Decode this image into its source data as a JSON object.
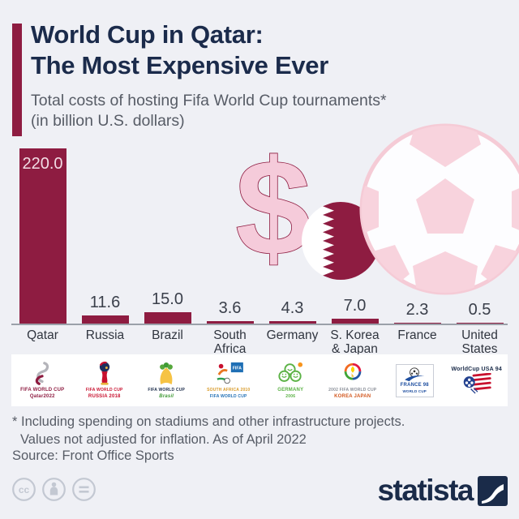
{
  "header": {
    "title_line1": "World Cup in Qatar:",
    "title_line2": "The Most Expensive Ever",
    "subtitle_line1": "Total costs of hosting Fifa World Cup tournaments*",
    "subtitle_line2": "(in billion U.S. dollars)"
  },
  "chart_data": {
    "type": "bar",
    "title": "Total costs of hosting Fifa World Cup tournaments (in billion U.S. dollars)",
    "categories": [
      "Qatar",
      "Russia",
      "Brazil",
      "South Africa",
      "Germany",
      "S. Korea & Japan",
      "France",
      "United States"
    ],
    "category_labels": [
      "Qatar",
      "Russia",
      "Brazil",
      "South\nAfrica",
      "Germany",
      "S. Korea\n& Japan",
      "France",
      "United\nStates"
    ],
    "values": [
      220.0,
      11.6,
      15.0,
      3.6,
      4.3,
      7.0,
      2.3,
      0.5
    ],
    "value_labels": [
      "220.0",
      "11.6",
      "15.0",
      "3.6",
      "4.3",
      "7.0",
      "2.3",
      "0.5"
    ],
    "ylim": [
      0,
      223
    ],
    "grid": false,
    "legend": false,
    "bar_color": "#8E1C41",
    "xlabel": "",
    "ylabel": ""
  },
  "logos": [
    {
      "name": "qatar-2022-logo",
      "caption1": "FIFA WORLD CUP",
      "caption2": "Qatar2022"
    },
    {
      "name": "russia-2018-logo",
      "caption1": "FIFA WORLD CUP",
      "caption2": "RUSSIA 2018"
    },
    {
      "name": "brazil-2014-logo",
      "caption1": "FIFA WORLD CUP",
      "caption2": "Brasil"
    },
    {
      "name": "south-africa-2010-logo",
      "caption1": "SOUTH AFRICA 2010",
      "caption2": "FIFA WORLD CUP",
      "flag_label": "FIFA"
    },
    {
      "name": "germany-2006-logo",
      "caption1": "GERMANY",
      "caption2": "2006"
    },
    {
      "name": "korea-japan-2002-logo",
      "caption1": "2002 FIFA WORLD CUP",
      "caption2": "KOREA JAPAN"
    },
    {
      "name": "france-98-logo",
      "caption1": "FRANCE 98",
      "caption2": "WORLD CUP"
    },
    {
      "name": "usa-94-logo",
      "caption1": "WorldCup USA 94"
    }
  ],
  "footnote": {
    "line1": "* Including spending on stadiums and other infrastructure projects.",
    "line2": "Values not adjusted for inflation. As of April 2022"
  },
  "source": "Source: Front Office Sports",
  "footer": {
    "brand": "statista",
    "cc_label": "cc",
    "license_icons": [
      "cc-icon",
      "attribution-icon",
      "equal-icon"
    ]
  },
  "colors": {
    "background": "#EFF0F5",
    "bar_maroon": "#8E1C41",
    "title_navy": "#1B2B4B",
    "text_gray": "#575C66",
    "decor_pink": "#F5CBDA",
    "decor_pink_light": "#F8D3DD"
  }
}
